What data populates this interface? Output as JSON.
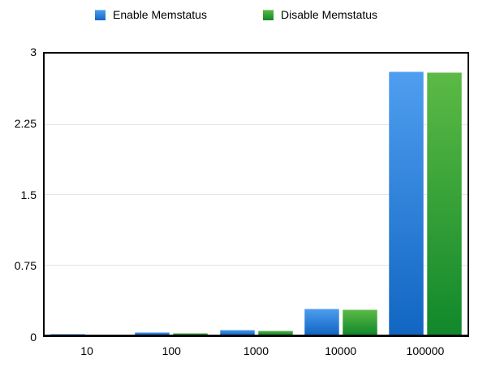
{
  "chart_data": {
    "type": "bar",
    "title": "",
    "xlabel": "",
    "ylabel": "",
    "categories": [
      "10",
      "100",
      "1000",
      "10000",
      "100000"
    ],
    "series": [
      {
        "name": "Enable Memstatus",
        "color_top": "#4f9ef0",
        "color_bottom": "#1166c2",
        "values": [
          0.005,
          0.025,
          0.05,
          0.28,
          2.81
        ]
      },
      {
        "name": "Disable Memstatus",
        "color_top": "#5cba45",
        "color_bottom": "#11882b",
        "values": [
          0.004,
          0.015,
          0.045,
          0.27,
          2.8
        ]
      }
    ],
    "ylim": [
      0,
      3
    ],
    "yticks": [
      "0",
      "0.75",
      "1.5",
      "2.25",
      "3"
    ],
    "grid": true,
    "legend_position": "top",
    "plot_border_color": "#000000",
    "gridline_color": "#e4e4e4",
    "background_color": "#ffffff"
  }
}
